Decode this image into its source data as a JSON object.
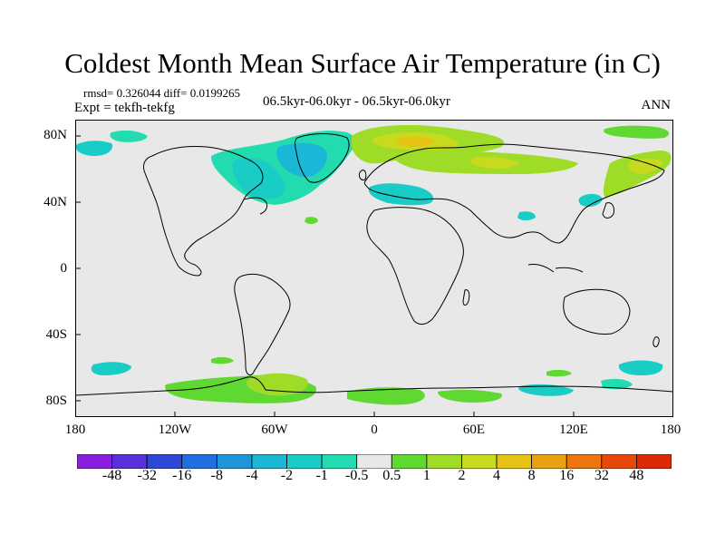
{
  "header": {
    "title": "Coldest Month Mean Surface Air Temperature (in C)",
    "stats": "rmsd= 0.326044 diff= 0.0199265",
    "expt": "Expt = tekfh-tekfg",
    "subtitle": "06.5kyr-06.0kyr - 06.5kyr-06.0kyr",
    "period": "ANN"
  },
  "axes": {
    "lat_labels": [
      "80N",
      "40N",
      "0",
      "40S",
      "80S"
    ],
    "lon_labels": [
      "180",
      "120W",
      "60W",
      "0",
      "60E",
      "120E",
      "180"
    ]
  },
  "colorbar": {
    "labels": [
      "-48",
      "-32",
      "-16",
      "-8",
      "-4",
      "-2",
      "-1",
      "-0.5",
      "0.5",
      "1",
      "2",
      "4",
      "8",
      "16",
      "32",
      "48"
    ],
    "colors": [
      "#8a1fe0",
      "#5b2fd9",
      "#2d47d6",
      "#1f6fe0",
      "#1d96dc",
      "#1bb7d6",
      "#19ccc6",
      "#22dcb0",
      "#e8e8e8",
      "#5fd832",
      "#9fdc28",
      "#c9d91e",
      "#e6c314",
      "#eba010",
      "#ec760d",
      "#e8480a",
      "#dc2a06"
    ]
  },
  "chart_data": {
    "type": "heatmap",
    "title": "Coldest Month Mean Surface Air Temperature (in C)",
    "xlabel": "",
    "ylabel": "",
    "xlim": [
      -180,
      180
    ],
    "ylim": [
      -90,
      90
    ],
    "levels": [
      -48,
      -32,
      -16,
      -8,
      -4,
      -2,
      -1,
      -0.5,
      0.5,
      1,
      2,
      4,
      8,
      16,
      32,
      48
    ],
    "background_level": "-0.5 to 0.5",
    "regions": [
      {
        "region": "Labrador Sea / Baffin / N Canada",
        "range": "-2 to -0.5"
      },
      {
        "region": "Greenland Sea / N Atlantic",
        "range": "-2 to -0.5"
      },
      {
        "region": "Arctic Siberia / Barents Sea",
        "range": "1 to 4"
      },
      {
        "region": "Northern Russia",
        "range": "0.5 to 2"
      },
      {
        "region": "Mediterranean",
        "range": "-2 to -0.5"
      },
      {
        "region": "Northeast Asia / Kamchatka",
        "range": "0.5 to 2"
      },
      {
        "region": "Bering / Okhotsk",
        "range": "-2 to -0.5"
      },
      {
        "region": "Antarctic Peninsula / Weddell Sea",
        "range": "0.5 to 2"
      },
      {
        "region": "Southern Ocean scattered",
        "range": "-2 to 1"
      }
    ]
  }
}
